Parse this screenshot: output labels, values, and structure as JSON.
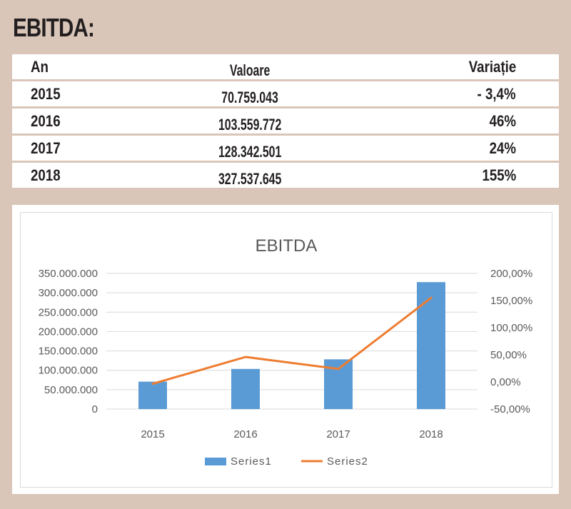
{
  "header": {
    "title": "EBITDA:"
  },
  "table": {
    "headers": {
      "year": "An",
      "value": "Valoare",
      "change": "Variație"
    },
    "rows": [
      {
        "year": "2015",
        "value": "70.759.043",
        "change": "- 3,4%"
      },
      {
        "year": "2016",
        "value": "103.559.772",
        "change": "46%"
      },
      {
        "year": "2017",
        "value": "128.342.501",
        "change": "24%"
      },
      {
        "year": "2018",
        "value": "327.537.645",
        "change": "155%"
      }
    ]
  },
  "chart_data": {
    "type": "bar",
    "title": "EBITDA",
    "categories": [
      "2015",
      "2016",
      "2017",
      "2018"
    ],
    "series": [
      {
        "name": "Series1",
        "type": "bar",
        "axis": "left",
        "color": "#5b9bd5",
        "values": [
          70759043,
          103559772,
          128342501,
          327537645
        ]
      },
      {
        "name": "Series2",
        "type": "line",
        "axis": "right",
        "color": "#ed7d31",
        "values": [
          -3.4,
          46,
          24,
          155
        ]
      }
    ],
    "y_left": {
      "ylim": [
        0,
        350000000
      ],
      "ticks": [
        "350.000.000",
        "300.000.000",
        "250.000.000",
        "200.000.000",
        "150.000.000",
        "100.000.000",
        "50.000.000",
        "0"
      ],
      "tick_values": [
        350000000,
        300000000,
        250000000,
        200000000,
        150000000,
        100000000,
        50000000,
        0
      ]
    },
    "y_right": {
      "ylim": [
        -50,
        200
      ],
      "ticks": [
        "200,00%",
        "150,00%",
        "100,00%",
        "50,00%",
        "0,00%",
        "-50,00%"
      ],
      "tick_values": [
        200,
        150,
        100,
        50,
        0,
        -50
      ]
    },
    "grid": true,
    "legend_position": "bottom"
  }
}
